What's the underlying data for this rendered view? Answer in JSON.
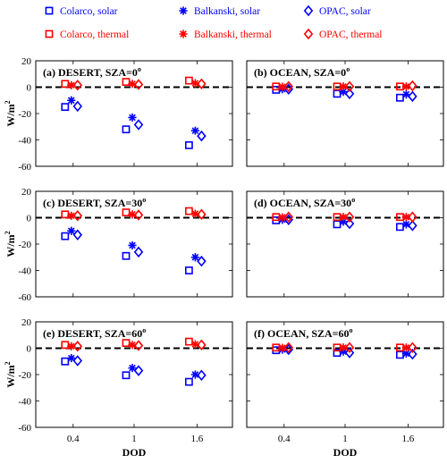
{
  "legend": {
    "entries": [
      {
        "label": "Colarco, solar",
        "color": "#0000ff",
        "marker": "square"
      },
      {
        "label": "Balkanski, solar",
        "color": "#0000ff",
        "marker": "asterisk"
      },
      {
        "label": "OPAC, solar",
        "color": "#0000ff",
        "marker": "diamond"
      },
      {
        "label": "Colarco, thermal",
        "color": "#ff0000",
        "marker": "square"
      },
      {
        "label": "Balkanski, thermal",
        "color": "#ff0000",
        "marker": "asterisk"
      },
      {
        "label": "OPAC, thermal",
        "color": "#ff0000",
        "marker": "diamond"
      }
    ]
  },
  "chart_data": [
    {
      "type": "scatter",
      "title": "(a) DESERT, SZA=0",
      "title_sup": "o",
      "xlabel": "",
      "ylabel": "W/m",
      "ylabel_sup": "2",
      "ylim": [
        -60,
        20
      ],
      "yticks": [
        20,
        0,
        -20,
        -40,
        -60
      ],
      "categories": [
        "0.4",
        "1",
        "1.6"
      ],
      "show_xticklabels": false,
      "show_yticklabels": true,
      "series": [
        {
          "name": "Colarco, solar",
          "values": [
            -15,
            -32,
            -44
          ]
        },
        {
          "name": "Balkanski, solar",
          "values": [
            -10,
            -23,
            -33
          ]
        },
        {
          "name": "OPAC, solar",
          "values": [
            -14.5,
            -28.5,
            -37
          ]
        },
        {
          "name": "Colarco, thermal",
          "values": [
            2.5,
            4,
            5
          ]
        },
        {
          "name": "Balkanski, thermal",
          "values": [
            1.5,
            2.5,
            3
          ]
        },
        {
          "name": "OPAC, thermal",
          "values": [
            1.5,
            2,
            2.5
          ]
        }
      ]
    },
    {
      "type": "scatter",
      "title": "(b) OCEAN, SZA=0",
      "title_sup": "o",
      "xlabel": "",
      "ylabel": "",
      "ylim": [
        -60,
        20
      ],
      "yticks": [
        20,
        0,
        -20,
        -40,
        -60
      ],
      "categories": [
        "0.4",
        "1",
        "1.6"
      ],
      "show_xticklabels": false,
      "show_yticklabels": false,
      "series": [
        {
          "name": "Colarco, solar",
          "values": [
            -2,
            -5,
            -8
          ]
        },
        {
          "name": "Balkanski, solar",
          "values": [
            -1.5,
            -3.5,
            -5.5
          ]
        },
        {
          "name": "OPAC, solar",
          "values": [
            -1.5,
            -5,
            -7
          ]
        },
        {
          "name": "Colarco, thermal",
          "values": [
            0.5,
            0.5,
            0.5
          ]
        },
        {
          "name": "Balkanski, thermal",
          "values": [
            0.3,
            0.5,
            0.5
          ]
        },
        {
          "name": "OPAC, thermal",
          "values": [
            0.5,
            0.5,
            1
          ]
        }
      ]
    },
    {
      "type": "scatter",
      "title": "(c) DESERT, SZA=30",
      "title_sup": "o",
      "xlabel": "",
      "ylabel": "W/m",
      "ylabel_sup": "2",
      "ylim": [
        -60,
        20
      ],
      "yticks": [
        20,
        0,
        -20,
        -40,
        -60
      ],
      "categories": [
        "0.4",
        "1",
        "1.6"
      ],
      "show_xticklabels": false,
      "show_yticklabels": true,
      "series": [
        {
          "name": "Colarco, solar",
          "values": [
            -14,
            -29,
            -40
          ]
        },
        {
          "name": "Balkanski, solar",
          "values": [
            -10,
            -21,
            -30
          ]
        },
        {
          "name": "OPAC, solar",
          "values": [
            -13,
            -26,
            -33
          ]
        },
        {
          "name": "Colarco, thermal",
          "values": [
            2.5,
            4,
            5
          ]
        },
        {
          "name": "Balkanski, thermal",
          "values": [
            1.5,
            2.5,
            3
          ]
        },
        {
          "name": "OPAC, thermal",
          "values": [
            1.5,
            2,
            2.5
          ]
        }
      ]
    },
    {
      "type": "scatter",
      "title": "(d) OCEAN, SZA=30",
      "title_sup": "o",
      "xlabel": "",
      "ylabel": "",
      "ylim": [
        -60,
        20
      ],
      "yticks": [
        20,
        0,
        -20,
        -40,
        -60
      ],
      "categories": [
        "0.4",
        "1",
        "1.6"
      ],
      "show_xticklabels": false,
      "show_yticklabels": false,
      "series": [
        {
          "name": "Colarco, solar",
          "values": [
            -2,
            -5,
            -7
          ]
        },
        {
          "name": "Balkanski, solar",
          "values": [
            -1.5,
            -3,
            -5
          ]
        },
        {
          "name": "OPAC, solar",
          "values": [
            -1.5,
            -4.5,
            -6
          ]
        },
        {
          "name": "Colarco, thermal",
          "values": [
            0.5,
            0.5,
            0.5
          ]
        },
        {
          "name": "Balkanski, thermal",
          "values": [
            0.3,
            0.5,
            0.5
          ]
        },
        {
          "name": "OPAC, thermal",
          "values": [
            0.5,
            0.5,
            0.5
          ]
        }
      ]
    },
    {
      "type": "scatter",
      "title": "(e) DESERT, SZA=60",
      "title_sup": "o",
      "xlabel": "DOD",
      "ylabel": "W/m",
      "ylabel_sup": "2",
      "ylim": [
        -60,
        20
      ],
      "yticks": [
        20,
        0,
        -20,
        -40,
        -60
      ],
      "categories": [
        "0.4",
        "1",
        "1.6"
      ],
      "show_xticklabels": true,
      "show_yticklabels": true,
      "series": [
        {
          "name": "Colarco, solar",
          "values": [
            -10,
            -20.5,
            -25.5
          ]
        },
        {
          "name": "Balkanski, solar",
          "values": [
            -7.5,
            -15,
            -20
          ]
        },
        {
          "name": "OPAC, solar",
          "values": [
            -9.5,
            -17,
            -20.5
          ]
        },
        {
          "name": "Colarco, thermal",
          "values": [
            2.5,
            4,
            5
          ]
        },
        {
          "name": "Balkanski, thermal",
          "values": [
            1.5,
            2.5,
            3
          ]
        },
        {
          "name": "OPAC, thermal",
          "values": [
            1.5,
            2,
            2.5
          ]
        }
      ]
    },
    {
      "type": "scatter",
      "title": "(f) OCEAN, SZA=60",
      "title_sup": "o",
      "xlabel": "DOD",
      "ylabel": "",
      "ylim": [
        -60,
        20
      ],
      "yticks": [
        20,
        0,
        -20,
        -40,
        -60
      ],
      "categories": [
        "0.4",
        "1",
        "1.6"
      ],
      "show_xticklabels": true,
      "show_yticklabels": false,
      "series": [
        {
          "name": "Colarco, solar",
          "values": [
            -1.5,
            -3.5,
            -5
          ]
        },
        {
          "name": "Balkanski, solar",
          "values": [
            -1,
            -2.5,
            -4
          ]
        },
        {
          "name": "OPAC, solar",
          "values": [
            -1,
            -3.5,
            -4.5
          ]
        },
        {
          "name": "Colarco, thermal",
          "values": [
            0.5,
            0.5,
            0.5
          ]
        },
        {
          "name": "Balkanski, thermal",
          "values": [
            0.3,
            0.5,
            0.5
          ]
        },
        {
          "name": "OPAC, thermal",
          "values": [
            0.5,
            0.5,
            0.5
          ]
        }
      ]
    }
  ]
}
